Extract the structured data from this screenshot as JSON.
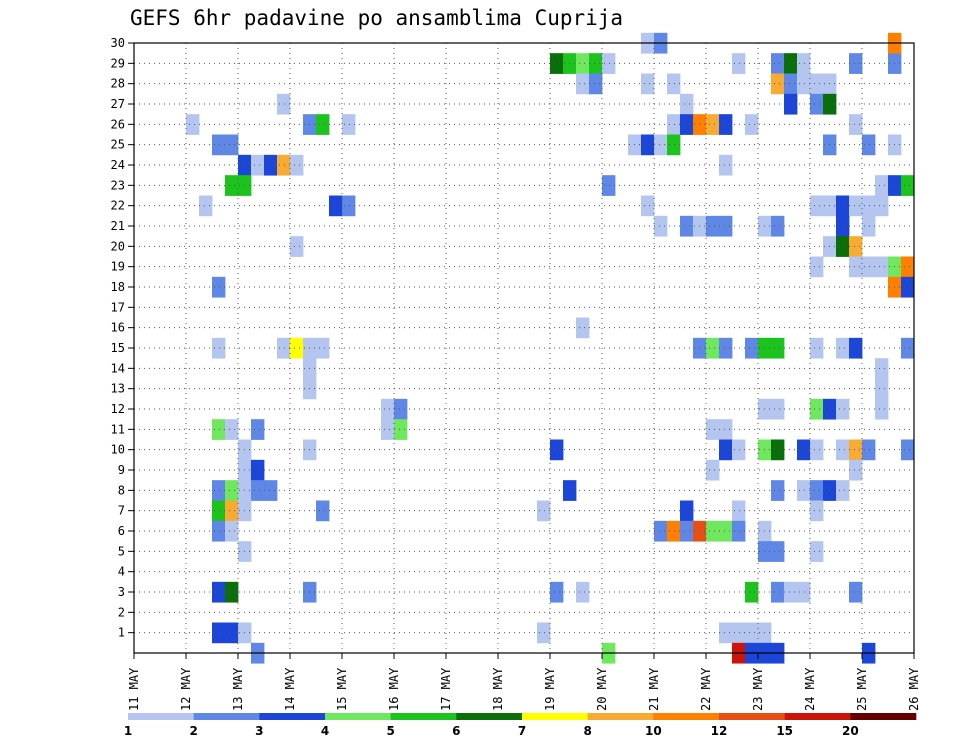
{
  "chart_data": {
    "type": "heatmap",
    "title": "GEFS 6hr padavine po ansamblima Cuprija",
    "xlabel": "",
    "ylabel": "",
    "x_tick_labels": [
      "11 MAY",
      "12 MAY",
      "13 MAY",
      "14 MAY",
      "15 MAY",
      "16 MAY",
      "17 MAY",
      "18 MAY",
      "19 MAY",
      "20 MAY",
      "21 MAY",
      "22 MAY",
      "23 MAY",
      "24 MAY",
      "25 MAY",
      "26 MAY"
    ],
    "y_tick_labels": [
      "1",
      "2",
      "3",
      "4",
      "5",
      "6",
      "7",
      "8",
      "9",
      "10",
      "11",
      "12",
      "13",
      "14",
      "15",
      "16",
      "17",
      "18",
      "19",
      "20",
      "21",
      "22",
      "23",
      "24",
      "25",
      "26",
      "27",
      "28",
      "29",
      "30"
    ],
    "xlim": [
      "11 MAY",
      "26 MAY"
    ],
    "ylim": [
      0,
      30
    ],
    "time_step_hours": 6,
    "grid": "dotted",
    "legend_position": "bottom",
    "legend": {
      "labels": [
        "1",
        "2",
        "3",
        "4",
        "5",
        "6",
        "7",
        "8",
        "10",
        "12",
        "15",
        "20"
      ],
      "colors": [
        "#b4c6ef",
        "#5f87e6",
        "#1c46d8",
        "#6fe85f",
        "#1cc31c",
        "#0a6e0a",
        "#ffff00",
        "#f7ab32",
        "#ff7f00",
        "#e65014",
        "#cd140a",
        "#640000"
      ]
    },
    "cells_format": "[member, step, class]",
    "cells": [
      [
        29,
        33,
        6
      ],
      [
        29,
        34,
        5
      ],
      [
        29,
        35,
        4
      ],
      [
        29,
        36,
        5
      ],
      [
        29,
        37,
        1
      ],
      [
        28,
        35,
        1
      ],
      [
        28,
        36,
        2
      ],
      [
        26,
        14,
        2
      ],
      [
        26,
        15,
        5
      ],
      [
        25,
        7,
        2
      ],
      [
        25,
        8,
        2
      ],
      [
        24,
        9,
        3
      ],
      [
        24,
        10,
        1
      ],
      [
        24,
        11,
        3
      ],
      [
        24,
        12,
        8
      ],
      [
        24,
        13,
        1
      ],
      [
        23,
        8,
        5
      ],
      [
        23,
        9,
        5
      ],
      [
        22,
        16,
        3
      ],
      [
        22,
        17,
        2
      ],
      [
        29,
        47,
        1
      ],
      [
        29,
        50,
        2
      ],
      [
        29,
        51,
        6
      ],
      [
        29,
        52,
        1
      ],
      [
        29,
        56,
        2
      ],
      [
        29,
        59,
        2
      ],
      [
        30,
        40,
        1
      ],
      [
        30,
        41,
        2
      ],
      [
        30,
        59,
        9
      ],
      [
        28,
        40,
        1
      ],
      [
        28,
        42,
        1
      ],
      [
        28,
        50,
        8
      ],
      [
        28,
        51,
        2
      ],
      [
        28,
        52,
        1
      ],
      [
        28,
        53,
        1
      ],
      [
        28,
        54,
        1
      ],
      [
        27,
        12,
        1
      ],
      [
        27,
        43,
        1
      ],
      [
        27,
        51,
        3
      ],
      [
        27,
        53,
        2
      ],
      [
        27,
        54,
        6
      ],
      [
        26,
        5,
        1
      ],
      [
        26,
        17,
        1
      ],
      [
        26,
        42,
        1
      ],
      [
        26,
        43,
        3
      ],
      [
        26,
        44,
        9
      ],
      [
        26,
        45,
        8
      ],
      [
        26,
        46,
        3
      ],
      [
        26,
        48,
        1
      ],
      [
        26,
        56,
        1
      ],
      [
        25,
        39,
        1
      ],
      [
        25,
        40,
        3
      ],
      [
        25,
        41,
        1
      ],
      [
        25,
        42,
        5
      ],
      [
        25,
        54,
        2
      ],
      [
        25,
        57,
        2
      ],
      [
        25,
        59,
        1
      ],
      [
        24,
        46,
        1
      ],
      [
        23,
        37,
        2
      ],
      [
        23,
        58,
        1
      ],
      [
        23,
        59,
        3
      ],
      [
        23,
        60,
        5
      ],
      [
        22,
        6,
        1
      ],
      [
        22,
        40,
        1
      ],
      [
        22,
        53,
        1
      ],
      [
        22,
        54,
        1
      ],
      [
        22,
        55,
        3
      ],
      [
        22,
        56,
        1
      ],
      [
        22,
        57,
        1
      ],
      [
        22,
        58,
        1
      ],
      [
        21,
        41,
        1
      ],
      [
        21,
        43,
        2
      ],
      [
        21,
        44,
        1
      ],
      [
        21,
        45,
        2
      ],
      [
        21,
        46,
        2
      ],
      [
        21,
        49,
        1
      ],
      [
        21,
        50,
        2
      ],
      [
        21,
        55,
        3
      ],
      [
        21,
        57,
        1
      ],
      [
        20,
        13,
        1
      ],
      [
        20,
        54,
        1
      ],
      [
        20,
        55,
        6
      ],
      [
        20,
        56,
        8
      ],
      [
        19,
        53,
        1
      ],
      [
        19,
        56,
        1
      ],
      [
        19,
        57,
        1
      ],
      [
        19,
        58,
        1
      ],
      [
        19,
        59,
        4
      ],
      [
        19,
        60,
        9
      ],
      [
        18,
        7,
        2
      ],
      [
        18,
        59,
        9
      ],
      [
        18,
        60,
        3
      ],
      [
        16,
        35,
        1
      ],
      [
        15,
        7,
        1
      ],
      [
        15,
        12,
        1
      ],
      [
        15,
        13,
        7
      ],
      [
        15,
        14,
        1
      ],
      [
        15,
        15,
        1
      ],
      [
        15,
        44,
        2
      ],
      [
        15,
        45,
        4
      ],
      [
        15,
        46,
        2
      ],
      [
        15,
        48,
        2
      ],
      [
        15,
        49,
        5
      ],
      [
        15,
        50,
        5
      ],
      [
        15,
        53,
        1
      ],
      [
        15,
        55,
        1
      ],
      [
        15,
        56,
        3
      ],
      [
        15,
        60,
        2
      ],
      [
        14,
        14,
        1
      ],
      [
        14,
        58,
        1
      ],
      [
        13,
        14,
        1
      ],
      [
        13,
        58,
        1
      ],
      [
        12,
        20,
        1
      ],
      [
        12,
        21,
        2
      ],
      [
        12,
        49,
        1
      ],
      [
        12,
        50,
        1
      ],
      [
        12,
        53,
        4
      ],
      [
        12,
        54,
        3
      ],
      [
        12,
        55,
        1
      ],
      [
        12,
        58,
        1
      ],
      [
        11,
        7,
        4
      ],
      [
        11,
        8,
        1
      ],
      [
        11,
        10,
        2
      ],
      [
        11,
        20,
        1
      ],
      [
        11,
        21,
        4
      ],
      [
        11,
        45,
        1
      ],
      [
        11,
        46,
        1
      ],
      [
        10,
        9,
        1
      ],
      [
        10,
        14,
        1
      ],
      [
        10,
        33,
        3
      ],
      [
        10,
        46,
        3
      ],
      [
        10,
        47,
        1
      ],
      [
        10,
        49,
        4
      ],
      [
        10,
        50,
        6
      ],
      [
        10,
        52,
        3
      ],
      [
        10,
        53,
        1
      ],
      [
        10,
        55,
        1
      ],
      [
        10,
        56,
        8
      ],
      [
        10,
        57,
        2
      ],
      [
        10,
        60,
        2
      ],
      [
        9,
        9,
        1
      ],
      [
        9,
        10,
        3
      ],
      [
        9,
        45,
        1
      ],
      [
        9,
        56,
        1
      ],
      [
        8,
        7,
        2
      ],
      [
        8,
        8,
        4
      ],
      [
        8,
        9,
        1
      ],
      [
        8,
        10,
        2
      ],
      [
        8,
        11,
        2
      ],
      [
        8,
        34,
        3
      ],
      [
        8,
        50,
        2
      ],
      [
        8,
        52,
        1
      ],
      [
        8,
        53,
        2
      ],
      [
        8,
        54,
        3
      ],
      [
        8,
        55,
        1
      ],
      [
        7,
        7,
        5
      ],
      [
        7,
        8,
        8
      ],
      [
        7,
        9,
        1
      ],
      [
        7,
        15,
        2
      ],
      [
        7,
        32,
        1
      ],
      [
        7,
        43,
        3
      ],
      [
        7,
        47,
        1
      ],
      [
        7,
        53,
        1
      ],
      [
        6,
        7,
        2
      ],
      [
        6,
        8,
        1
      ],
      [
        6,
        41,
        2
      ],
      [
        6,
        42,
        9
      ],
      [
        6,
        43,
        2
      ],
      [
        6,
        44,
        10
      ],
      [
        6,
        45,
        4
      ],
      [
        6,
        46,
        4
      ],
      [
        6,
        47,
        2
      ],
      [
        6,
        49,
        1
      ],
      [
        5,
        9,
        1
      ],
      [
        5,
        49,
        2
      ],
      [
        5,
        50,
        2
      ],
      [
        5,
        53,
        1
      ],
      [
        3,
        7,
        3
      ],
      [
        3,
        8,
        6
      ],
      [
        3,
        14,
        2
      ],
      [
        3,
        33,
        2
      ],
      [
        3,
        35,
        1
      ],
      [
        3,
        48,
        5
      ],
      [
        3,
        50,
        2
      ],
      [
        3,
        51,
        1
      ],
      [
        3,
        52,
        1
      ],
      [
        3,
        56,
        2
      ],
      [
        1,
        7,
        3
      ],
      [
        1,
        8,
        3
      ],
      [
        1,
        9,
        1
      ],
      [
        1,
        32,
        1
      ],
      [
        1,
        46,
        1
      ],
      [
        1,
        47,
        1
      ],
      [
        1,
        48,
        1
      ],
      [
        1,
        49,
        1
      ],
      [
        0,
        10,
        2
      ],
      [
        0,
        37,
        4
      ],
      [
        0,
        47,
        11
      ],
      [
        0,
        48,
        3
      ],
      [
        0,
        49,
        3
      ],
      [
        0,
        50,
        3
      ],
      [
        0,
        57,
        3
      ]
    ]
  }
}
